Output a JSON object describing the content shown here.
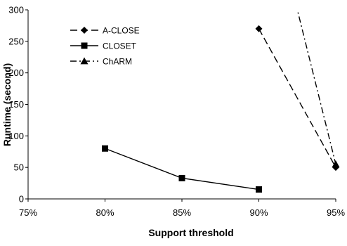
{
  "chart_data": {
    "type": "line",
    "title": "",
    "xlabel": "Support threshold",
    "ylabel": "Runtime (second)",
    "categories": [
      "75%",
      "80%",
      "85%",
      "90%",
      "95%"
    ],
    "x_values": [
      75,
      80,
      85,
      90,
      95
    ],
    "ylim": [
      0,
      300
    ],
    "yticks": [
      0,
      50,
      100,
      150,
      200,
      250,
      300
    ],
    "legend_position": "top-left",
    "grid": false,
    "series": [
      {
        "name": "A-CLOSE",
        "marker": "diamond",
        "dash": "long-dash",
        "color": "#000000",
        "points": [
          [
            90,
            270
          ],
          [
            95,
            50
          ]
        ]
      },
      {
        "name": "CLOSET",
        "marker": "square",
        "dash": "solid",
        "color": "#000000",
        "points": [
          [
            80,
            80
          ],
          [
            85,
            33
          ],
          [
            90,
            15
          ]
        ]
      },
      {
        "name": "ChARM",
        "marker": "triangle",
        "dash": "dash-dot",
        "color": "#000000",
        "points": [
          [
            95,
            55
          ]
        ],
        "line_from_above_range": true
      }
    ]
  }
}
